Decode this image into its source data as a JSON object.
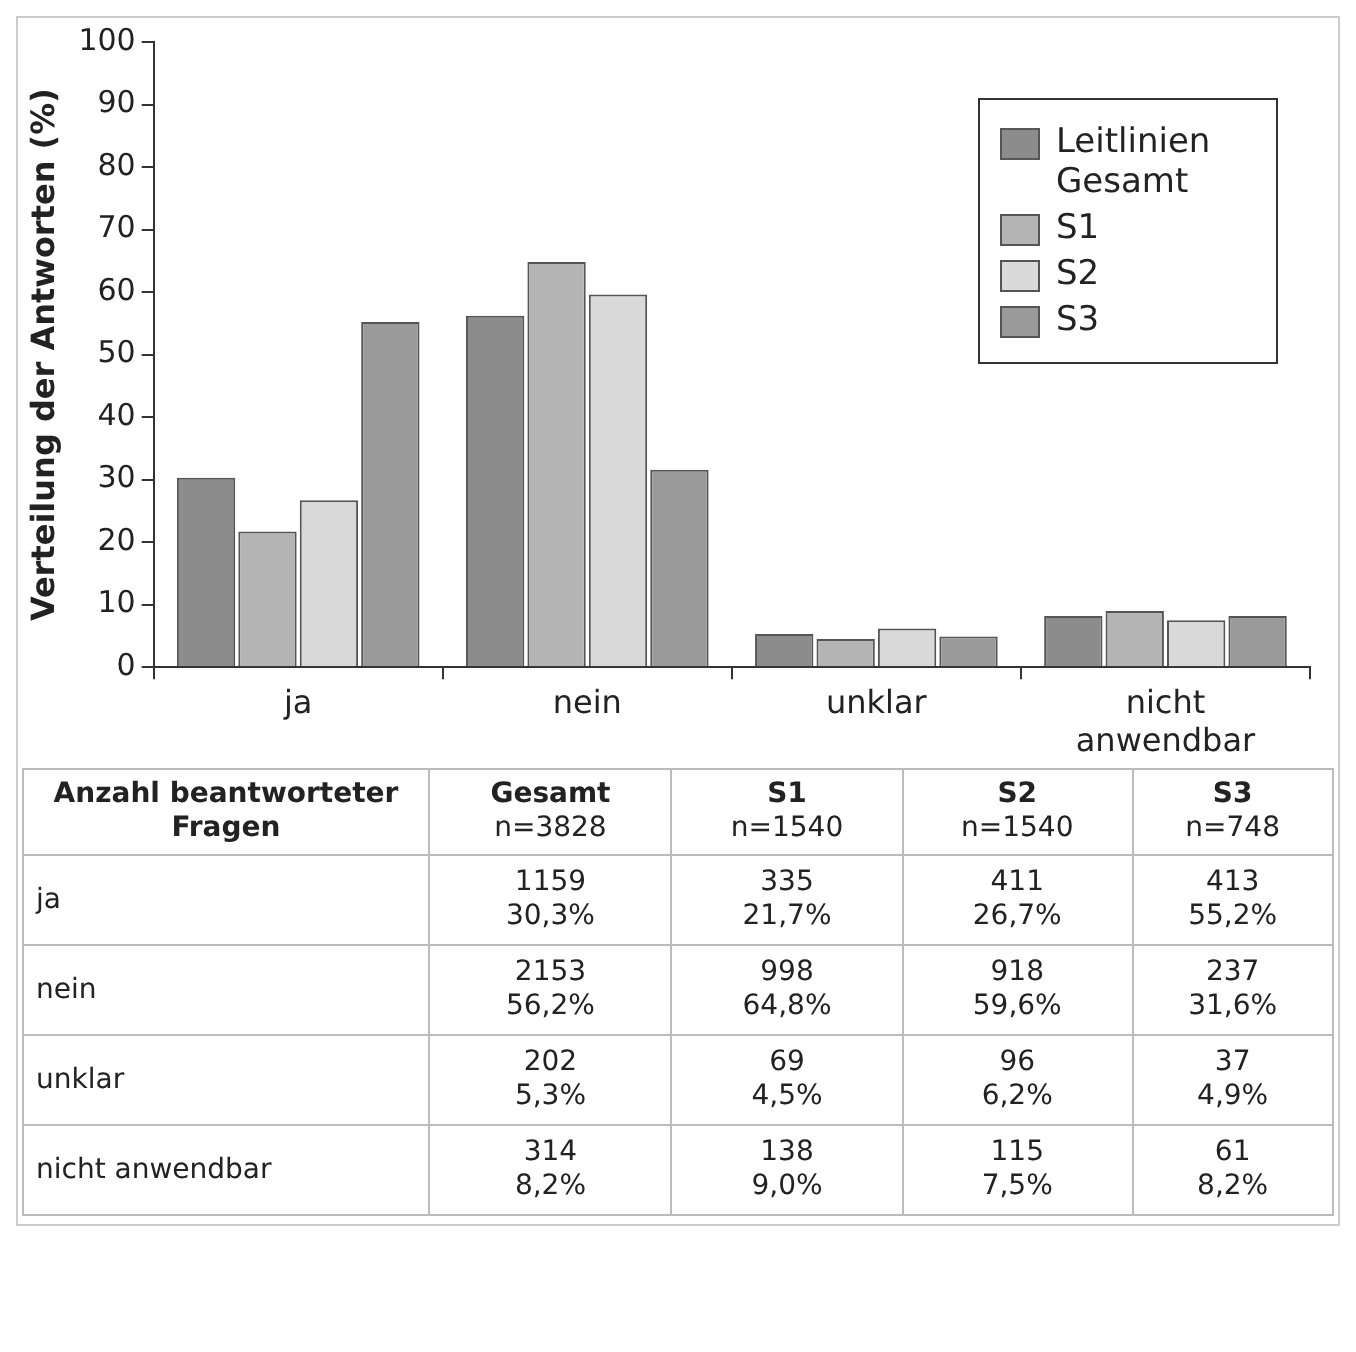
{
  "chart_data": {
    "type": "bar",
    "ylabel": "Verteilung der Antworten (%)",
    "categories": [
      "ja",
      "nein",
      "unklar",
      "nicht anwendbar"
    ],
    "series": [
      {
        "name": "Leitlinien Gesamt",
        "color": "#8c8c8c",
        "values": [
          30.3,
          56.2,
          5.3,
          8.2
        ]
      },
      {
        "name": "S1",
        "color": "#b4b4b4",
        "values": [
          21.7,
          64.8,
          4.5,
          9.0
        ]
      },
      {
        "name": "S2",
        "color": "#d9d9d9",
        "values": [
          26.7,
          59.6,
          6.2,
          7.5
        ]
      },
      {
        "name": "S3",
        "color": "#9a9a9a",
        "values": [
          55.2,
          31.6,
          4.9,
          8.2
        ]
      }
    ],
    "annotations": [
      "Anzahl beantworteter Fragen",
      "Gesamt\nn=3828",
      "S1\nn=1540",
      "S2\nn=1540",
      "S3\nn=748",
      "1159\n30,3%",
      "335\n21,7%",
      "411\n26,7%",
      "413\n55,2%",
      "2153\n56,2%",
      "998\n64,8%",
      "918\n59,6%",
      "237\n31,6%",
      "202\n5,3%",
      "69\n4,5%",
      "96\n6,2%",
      "37\n4,9%",
      "314\n8,2%",
      "138\n9,0%",
      "115\n7,5%",
      "61\n8,2%"
    ],
    "ylim": [
      0,
      100
    ],
    "yticks": [
      0,
      10,
      20,
      30,
      40,
      50,
      60,
      70,
      80,
      90,
      100
    ],
    "grid": false,
    "legend": "top right"
  }
}
